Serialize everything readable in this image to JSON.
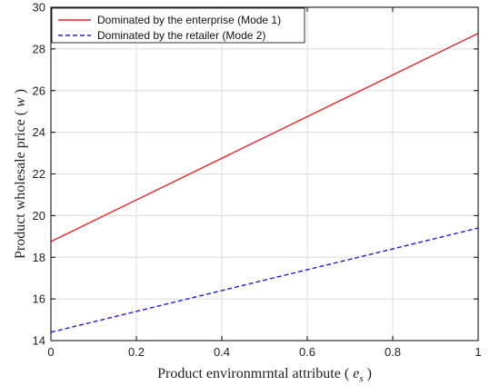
{
  "chart_data": {
    "type": "line",
    "xlabel": "Product environmrntal attribute",
    "xlabel_symbol": "e",
    "xlabel_subscript": "s",
    "ylabel": "Product wholesale price",
    "ylabel_symbol": "w",
    "xlim": [
      0,
      1
    ],
    "ylim": [
      14,
      30
    ],
    "xticks": [
      0,
      0.2,
      0.4,
      0.6,
      0.8,
      1
    ],
    "xtick_labels": [
      "0",
      "0.2",
      "0.4",
      "0.6",
      "0.8",
      "1"
    ],
    "yticks": [
      14,
      16,
      18,
      20,
      22,
      24,
      26,
      28,
      30
    ],
    "ytick_labels": [
      "14",
      "16",
      "18",
      "20",
      "22",
      "24",
      "26",
      "28",
      "30"
    ],
    "grid": true,
    "legend_position": "top-left",
    "series": [
      {
        "name": "Dominated by the enterprise (Mode 1)",
        "color": "#e8262a",
        "line_style": "solid",
        "x": [
          0,
          1
        ],
        "y": [
          18.75,
          28.75
        ]
      },
      {
        "name": "Dominated by the retailer (Mode 2)",
        "color": "#1d1de0",
        "line_style": "dashed",
        "x": [
          0,
          1
        ],
        "y": [
          14.4,
          19.4
        ]
      }
    ]
  }
}
